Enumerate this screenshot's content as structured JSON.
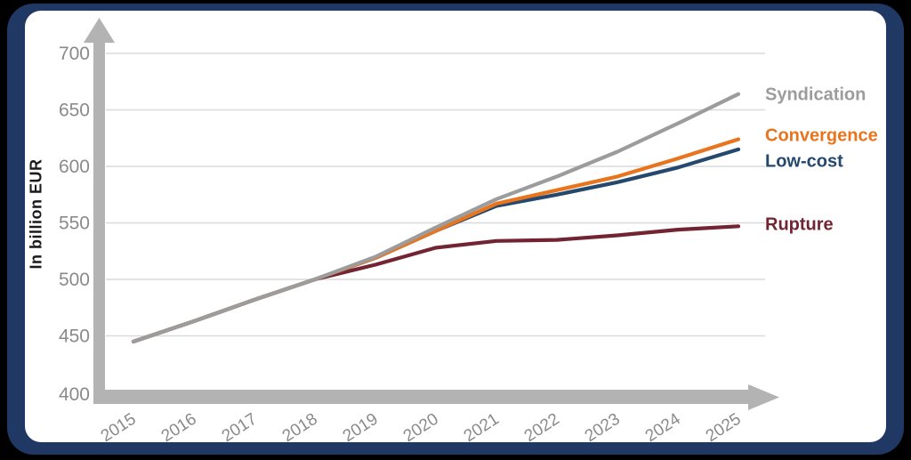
{
  "window": {
    "background_color": "#000000",
    "card_color": "#1f3864",
    "panel_color": "#ffffff"
  },
  "chart_data": {
    "type": "line",
    "title": "",
    "xlabel": "",
    "ylabel": "In billion EUR",
    "x": [
      2015,
      2016,
      2017,
      2018,
      2019,
      2020,
      2021,
      2022,
      2023,
      2024,
      2025
    ],
    "ylim": [
      400,
      700
    ],
    "yticks": [
      400,
      450,
      500,
      550,
      600,
      650,
      700
    ],
    "grid": "horizontal",
    "gridline_color": "#dadada",
    "axis_color": "#b3b3b3",
    "tick_label_color": "#8a8a8a",
    "legend_position": "right-end-labels",
    "series": [
      {
        "name": "Syndication",
        "color": "#9c9c9c",
        "values": [
          445,
          463,
          482,
          500,
          520,
          546,
          571,
          591,
          613,
          638,
          664
        ]
      },
      {
        "name": "Convergence",
        "color": "#e8741e",
        "values": [
          445,
          463,
          482,
          500,
          519,
          543,
          567,
          579,
          591,
          607,
          624
        ]
      },
      {
        "name": "Low-cost",
        "color": "#24486e",
        "values": [
          445,
          463,
          482,
          500,
          519,
          543,
          565,
          575,
          586,
          599,
          615
        ]
      },
      {
        "name": "Rupture",
        "color": "#722433",
        "values": [
          445,
          463,
          482,
          500,
          513,
          528,
          534,
          535,
          539,
          544,
          547
        ]
      }
    ]
  }
}
